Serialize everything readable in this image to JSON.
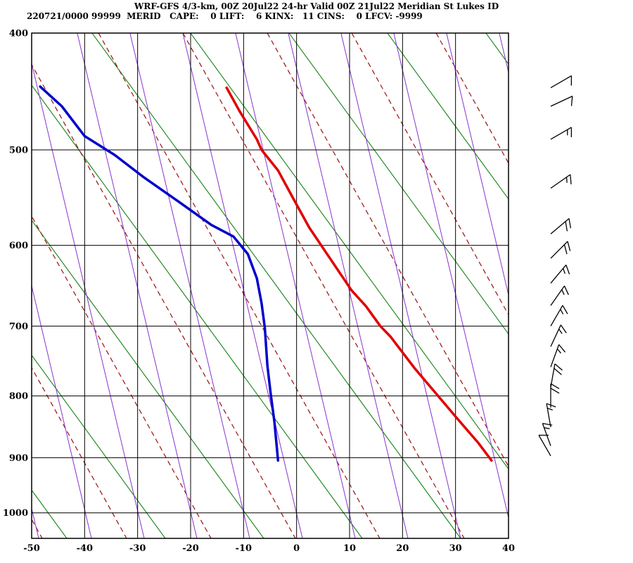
{
  "header": {
    "title": "WRF-GFS 4/3-km, 00Z 20Jul22 24-hr Valid 00Z 21Jul22 Meridian St Lukes ID",
    "stats_line": "220721/0000 99999  MERID   CAPE:    0 LIFT:    6 KINX:   11 CINS:    0 LFCV: -9999"
  },
  "chart_data": {
    "type": "line",
    "chart_kind": "skewt-logp-sounding",
    "title": "WRF-GFS 4/3-km, 00Z 20Jul22 24-hr Valid 00Z 21Jul22 Meridian St Lukes ID",
    "indices": {
      "run": "220721/0000",
      "station_number": "99999",
      "station_id": "MERID",
      "CAPE": 0,
      "LIFT": 6,
      "KINX": 11,
      "CINS": 0,
      "LFCV": -9999
    },
    "xlabel": "",
    "ylabel": "",
    "x_axis": {
      "min": -50,
      "max": 40,
      "ticks": [
        -50,
        -40,
        -30,
        -20,
        -10,
        0,
        10,
        20,
        30,
        40
      ]
    },
    "y_axis": {
      "scale": "log",
      "top": 400,
      "bottom": 1050,
      "ticks": [
        400,
        500,
        600,
        700,
        800,
        900,
        1000
      ]
    },
    "grid": {
      "color": "#000000",
      "isotherm_step_c": 10
    },
    "series": [
      {
        "name": "temperature",
        "color": "#e00000",
        "width": 3.5,
        "points_p_t": [
          [
            444,
            -13.2
          ],
          [
            464,
            -10.8
          ],
          [
            490,
            -7.5
          ],
          [
            500,
            -6.6
          ],
          [
            520,
            -3.5
          ],
          [
            553,
            -0.2
          ],
          [
            580,
            2.4
          ],
          [
            616,
            6.4
          ],
          [
            654,
            10.4
          ],
          [
            674,
            13.1
          ],
          [
            700,
            15.8
          ],
          [
            714,
            17.7
          ],
          [
            759,
            22.3
          ],
          [
            796,
            26.3
          ],
          [
            835,
            30.3
          ],
          [
            875,
            34.3
          ],
          [
            905,
            36.8
          ]
        ]
      },
      {
        "name": "dewpoint",
        "color": "#0000cc",
        "width": 3.5,
        "points_p_t": [
          [
            443,
            -48.4
          ],
          [
            460,
            -44.3
          ],
          [
            487,
            -40.0
          ],
          [
            505,
            -34.3
          ],
          [
            527,
            -28.8
          ],
          [
            551,
            -22.5
          ],
          [
            577,
            -16.1
          ],
          [
            590,
            -11.9
          ],
          [
            610,
            -9.2
          ],
          [
            639,
            -7.5
          ],
          [
            670,
            -6.6
          ],
          [
            702,
            -6.0
          ],
          [
            755,
            -5.5
          ],
          [
            796,
            -4.9
          ],
          [
            839,
            -4.2
          ],
          [
            875,
            -3.8
          ],
          [
            905,
            -3.5
          ]
        ]
      }
    ],
    "background": {
      "families": [
        {
          "name": "dry-adiabat",
          "color": "#007700",
          "width": 1,
          "dash": "",
          "dx_per_dy": 0.73,
          "bottom_start": 95,
          "step": 140,
          "count": 9
        },
        {
          "name": "moist-adiabat",
          "color": "#9b1010",
          "width": 1.2,
          "dash": "7,5",
          "dx_per_dy": 0.557,
          "bottom_start": 60,
          "step": 120,
          "count": 10
        },
        {
          "name": "mixing-ratio",
          "color": "#8833cc",
          "width": 1,
          "dash": "",
          "dx_per_dy": 0.237,
          "bottom_start": 55,
          "step": 75,
          "count": 12
        }
      ]
    },
    "wind_barbs": [
      {
        "p": 444,
        "dir": 60,
        "spd": 10
      },
      {
        "p": 460,
        "dir": 65,
        "spd": 10
      },
      {
        "p": 490,
        "dir": 60,
        "spd": 15
      },
      {
        "p": 538,
        "dir": 55,
        "spd": 15
      },
      {
        "p": 587,
        "dir": 50,
        "spd": 20
      },
      {
        "p": 615,
        "dir": 45,
        "spd": 20
      },
      {
        "p": 645,
        "dir": 40,
        "spd": 15
      },
      {
        "p": 673,
        "dir": 35,
        "spd": 15
      },
      {
        "p": 700,
        "dir": 30,
        "spd": 15
      },
      {
        "p": 728,
        "dir": 25,
        "spd": 15
      },
      {
        "p": 757,
        "dir": 20,
        "spd": 15
      },
      {
        "p": 787,
        "dir": 10,
        "spd": 20
      },
      {
        "p": 818,
        "dir": 0,
        "spd": 20
      },
      {
        "p": 849,
        "dir": 350,
        "spd": 15
      },
      {
        "p": 880,
        "dir": 340,
        "spd": 15
      },
      {
        "p": 897,
        "dir": 330,
        "spd": 10
      }
    ]
  }
}
